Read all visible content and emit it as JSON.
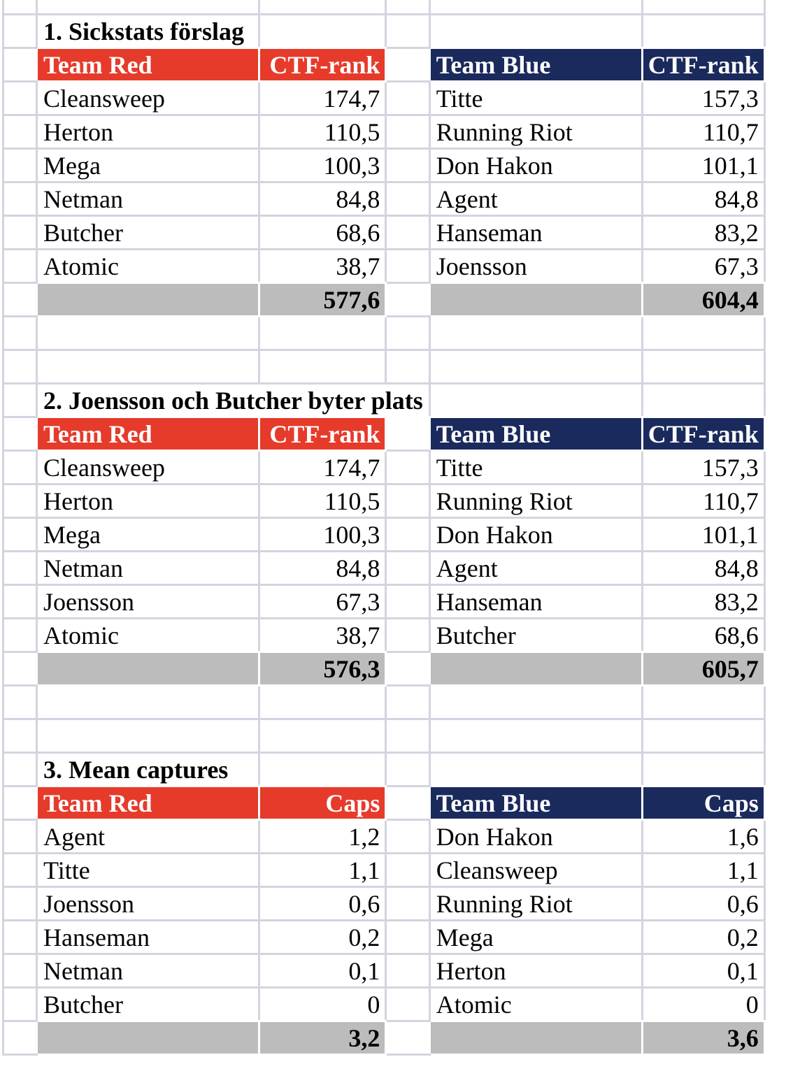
{
  "colors": {
    "team_red_fill": "#e63b2b",
    "team_blue_fill": "#1b2a5c",
    "total_row_fill": "#bcbcbc",
    "gridline": "#d4d4e0",
    "header_text": "#ffffff",
    "cell_text": "#000000"
  },
  "sections": [
    {
      "title": "1. Sickstats förslag",
      "red": {
        "team_label": "Team Red",
        "value_label": "CTF-rank",
        "rows": [
          {
            "name": "Cleansweep",
            "value": "174,7"
          },
          {
            "name": "Herton",
            "value": "110,5"
          },
          {
            "name": "Mega",
            "value": "100,3"
          },
          {
            "name": "Netman",
            "value": "84,8"
          },
          {
            "name": "Butcher",
            "value": "68,6"
          },
          {
            "name": "Atomic",
            "value": "38,7"
          }
        ],
        "total": "577,6"
      },
      "blue": {
        "team_label": "Team Blue",
        "value_label": "CTF-rank",
        "rows": [
          {
            "name": "Titte",
            "value": "157,3"
          },
          {
            "name": "Running Riot",
            "value": "110,7"
          },
          {
            "name": "Don Hakon",
            "value": "101,1"
          },
          {
            "name": "Agent",
            "value": "84,8"
          },
          {
            "name": "Hanseman",
            "value": "83,2"
          },
          {
            "name": "Joensson",
            "value": "67,3"
          }
        ],
        "total": "604,4"
      }
    },
    {
      "title": "2. Joensson och Butcher byter plats",
      "red": {
        "team_label": "Team Red",
        "value_label": "CTF-rank",
        "rows": [
          {
            "name": "Cleansweep",
            "value": "174,7"
          },
          {
            "name": "Herton",
            "value": "110,5"
          },
          {
            "name": "Mega",
            "value": "100,3"
          },
          {
            "name": "Netman",
            "value": "84,8"
          },
          {
            "name": "Joensson",
            "value": "67,3"
          },
          {
            "name": "Atomic",
            "value": "38,7"
          }
        ],
        "total": "576,3"
      },
      "blue": {
        "team_label": "Team Blue",
        "value_label": "CTF-rank",
        "rows": [
          {
            "name": "Titte",
            "value": "157,3"
          },
          {
            "name": "Running Riot",
            "value": "110,7"
          },
          {
            "name": "Don Hakon",
            "value": "101,1"
          },
          {
            "name": "Agent",
            "value": "84,8"
          },
          {
            "name": "Hanseman",
            "value": "83,2"
          },
          {
            "name": "Butcher",
            "value": "68,6"
          }
        ],
        "total": "605,7"
      }
    },
    {
      "title": "3. Mean captures",
      "red": {
        "team_label": "Team Red",
        "value_label": "Caps",
        "rows": [
          {
            "name": "Agent",
            "value": "1,2"
          },
          {
            "name": "Titte",
            "value": "1,1"
          },
          {
            "name": "Joensson",
            "value": "0,6"
          },
          {
            "name": "Hanseman",
            "value": "0,2"
          },
          {
            "name": "Netman",
            "value": "0,1"
          },
          {
            "name": "Butcher",
            "value": "0"
          }
        ],
        "total": "3,2"
      },
      "blue": {
        "team_label": "Team Blue",
        "value_label": "Caps",
        "rows": [
          {
            "name": "Don Hakon",
            "value": "1,6"
          },
          {
            "name": "Cleansweep",
            "value": "1,1"
          },
          {
            "name": "Running Riot",
            "value": "0,6"
          },
          {
            "name": "Mega",
            "value": "0,2"
          },
          {
            "name": "Herton",
            "value": "0,1"
          },
          {
            "name": "Atomic",
            "value": "0"
          }
        ],
        "total": "3,6"
      }
    }
  ]
}
